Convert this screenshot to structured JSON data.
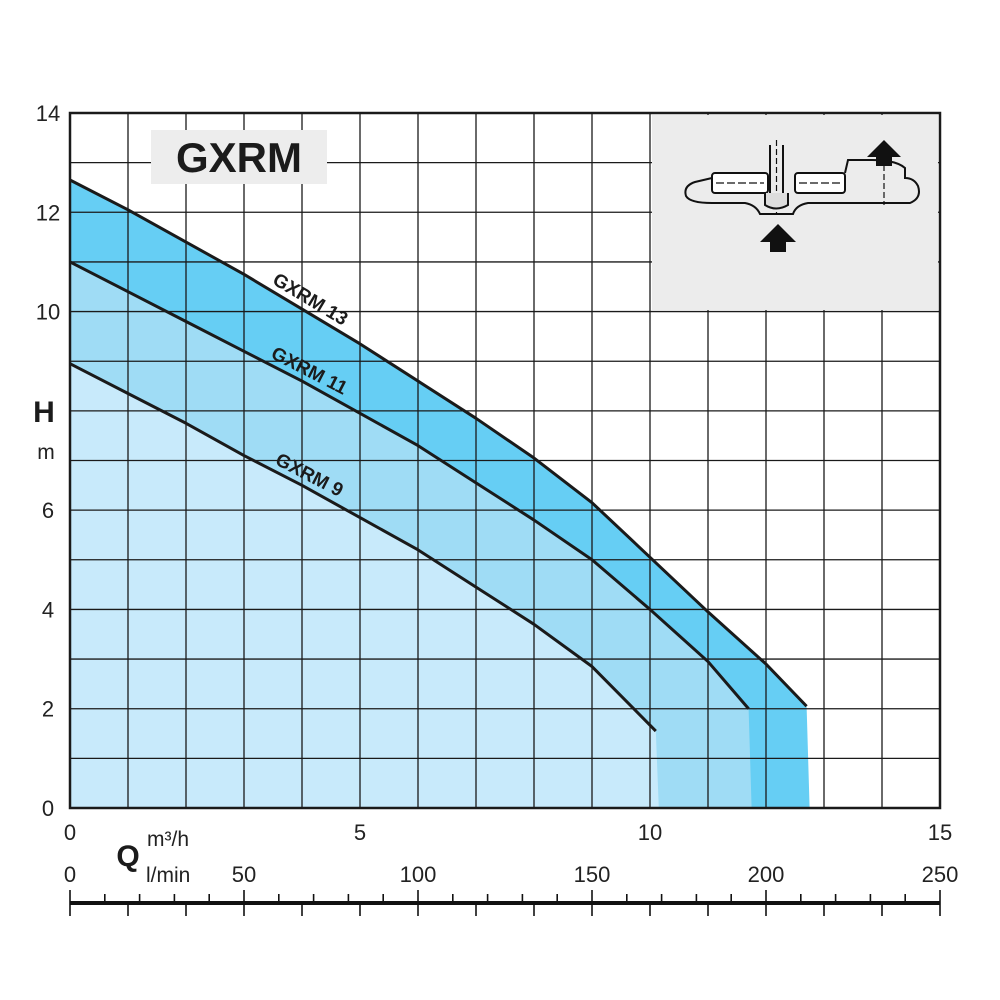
{
  "chart_data": {
    "type": "area",
    "title": "GXRM",
    "ylabel": "H",
    "ylabel_unit": "m",
    "xlabel": "Q",
    "xlabel_unit_primary": "m³/h",
    "xlabel_unit_secondary": "l/min",
    "xlim": [
      0,
      15
    ],
    "ylim": [
      0,
      14
    ],
    "x_ticks": [
      0,
      5,
      10,
      15
    ],
    "y_ticks": [
      0,
      2,
      4,
      6,
      10,
      12,
      14
    ],
    "x2_ticks": [
      0,
      50,
      100,
      150,
      200,
      250
    ],
    "grid": true,
    "series": [
      {
        "name": "GXRM 13",
        "color": "#66cef4",
        "x": [
          0,
          1,
          2,
          3,
          4,
          5,
          6,
          7,
          8,
          9,
          10,
          11,
          12,
          12.7
        ],
        "y": [
          12.65,
          12.05,
          11.4,
          10.75,
          10.05,
          9.35,
          8.6,
          7.85,
          7.05,
          6.15,
          5.05,
          3.95,
          2.9,
          2.05
        ]
      },
      {
        "name": "GXRM 11",
        "color": "#9fdcf5",
        "x": [
          0,
          1,
          2,
          3,
          4,
          5,
          6,
          7,
          8,
          9,
          10,
          11,
          11.7
        ],
        "y": [
          11.0,
          10.4,
          9.8,
          9.2,
          8.6,
          7.95,
          7.3,
          6.55,
          5.8,
          5.0,
          4.0,
          2.95,
          2.0
        ]
      },
      {
        "name": "GXRM 9",
        "color": "#c8eafb",
        "x": [
          0,
          1,
          2,
          3,
          4,
          5,
          6,
          7,
          8,
          9,
          10.1
        ],
        "y": [
          8.95,
          8.35,
          7.75,
          7.1,
          6.5,
          5.85,
          5.2,
          4.45,
          3.7,
          2.85,
          1.55
        ]
      }
    ]
  },
  "pictogram": {
    "name": "pump-flow-pictogram"
  }
}
